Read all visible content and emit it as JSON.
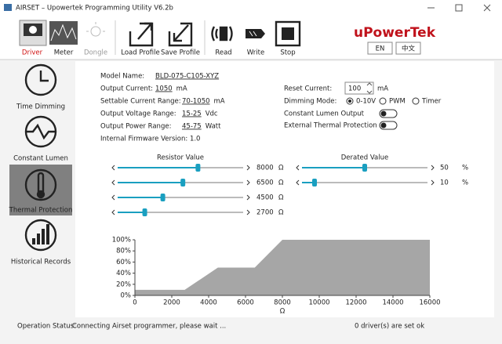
{
  "window": {
    "title": "AIRSET – Upowertek Programming Utility V6.2b"
  },
  "toolbar": {
    "buttons": [
      "Driver",
      "Meter",
      "Dongle",
      "Load Profile",
      "Save Profile",
      "Read",
      "Write",
      "Stop"
    ],
    "brand": "uPowerTek",
    "languages": [
      "EN",
      "中文"
    ]
  },
  "sidebar": {
    "items": [
      "Time Dimming",
      "Constant Lumen",
      "Thermal Protection",
      "Historical Records"
    ],
    "selected": 2
  },
  "form": {
    "model_name": {
      "label": "Model Name:",
      "value": "BLD-075-C105-XYZ"
    },
    "output_current": {
      "label": "Output Current:",
      "value": "1050",
      "unit": "mA"
    },
    "settable_current_range": {
      "label": "Settable Current Range:",
      "value": "70-1050",
      "unit": "mA"
    },
    "output_voltage_range": {
      "label": "Output Voltage Range:",
      "value": "15-25",
      "unit": "Vdc"
    },
    "output_power_range": {
      "label": "Output Power Range:",
      "value": "45-75",
      "unit": "Watt"
    },
    "firmware": "Internal Firmware Version: 1.0",
    "reset_current": {
      "label": "Reset Current:",
      "value": "100",
      "unit": "mA"
    },
    "dimming_mode": {
      "label": "Dimming Mode:",
      "options": [
        "0-10V",
        "PWM",
        "Timer"
      ],
      "selected": 0
    },
    "constant_lumen_output": {
      "label": "Constant Lumen Output",
      "on": false
    },
    "external_thermal_protection": {
      "label": "External Thermal Protection",
      "on": false
    }
  },
  "sliders": {
    "resistor": {
      "title": "Resistor Value",
      "unit": "Ω",
      "values": [
        8000,
        6500,
        4500,
        2700
      ]
    },
    "derated": {
      "title": "Derated Value",
      "unit": "%",
      "values": [
        50,
        10
      ]
    }
  },
  "chart_data": {
    "type": "area",
    "x": [
      0,
      2700,
      4500,
      6500,
      8000,
      16000
    ],
    "values": [
      10,
      10,
      50,
      50,
      100,
      100
    ],
    "color": "#a6a6a6",
    "x_label": "Ω",
    "xlim": [
      0,
      16000
    ],
    "ylim": [
      0,
      100
    ],
    "xticks": [
      0,
      2000,
      4000,
      6000,
      8000,
      10000,
      12000,
      14000,
      16000
    ],
    "yticks": [
      {
        "value": 0,
        "label": "0%"
      },
      {
        "value": 20,
        "label": "20%"
      },
      {
        "value": 40,
        "label": "40%"
      },
      {
        "value": 60,
        "label": "60%"
      },
      {
        "value": 80,
        "label": "80%"
      },
      {
        "value": 100,
        "label": "100%"
      }
    ]
  },
  "status": {
    "label": "Operation Status:",
    "message": "Connecting Airset programmer, please wait ...",
    "result": "0 driver(s) are set ok"
  }
}
